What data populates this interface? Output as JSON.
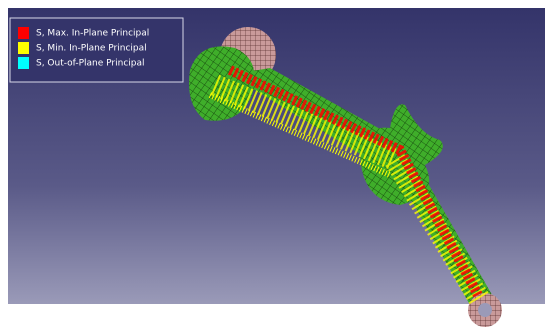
{
  "legend": {
    "items": [
      {
        "label": "S, Max. In-Plane Principal",
        "color": "#ff0000"
      },
      {
        "label": "S, Min. In-Plane Principal",
        "color": "#ffff00"
      },
      {
        "label": "S, Out-of-Plane Principal",
        "color": "#00ffff"
      }
    ]
  }
}
